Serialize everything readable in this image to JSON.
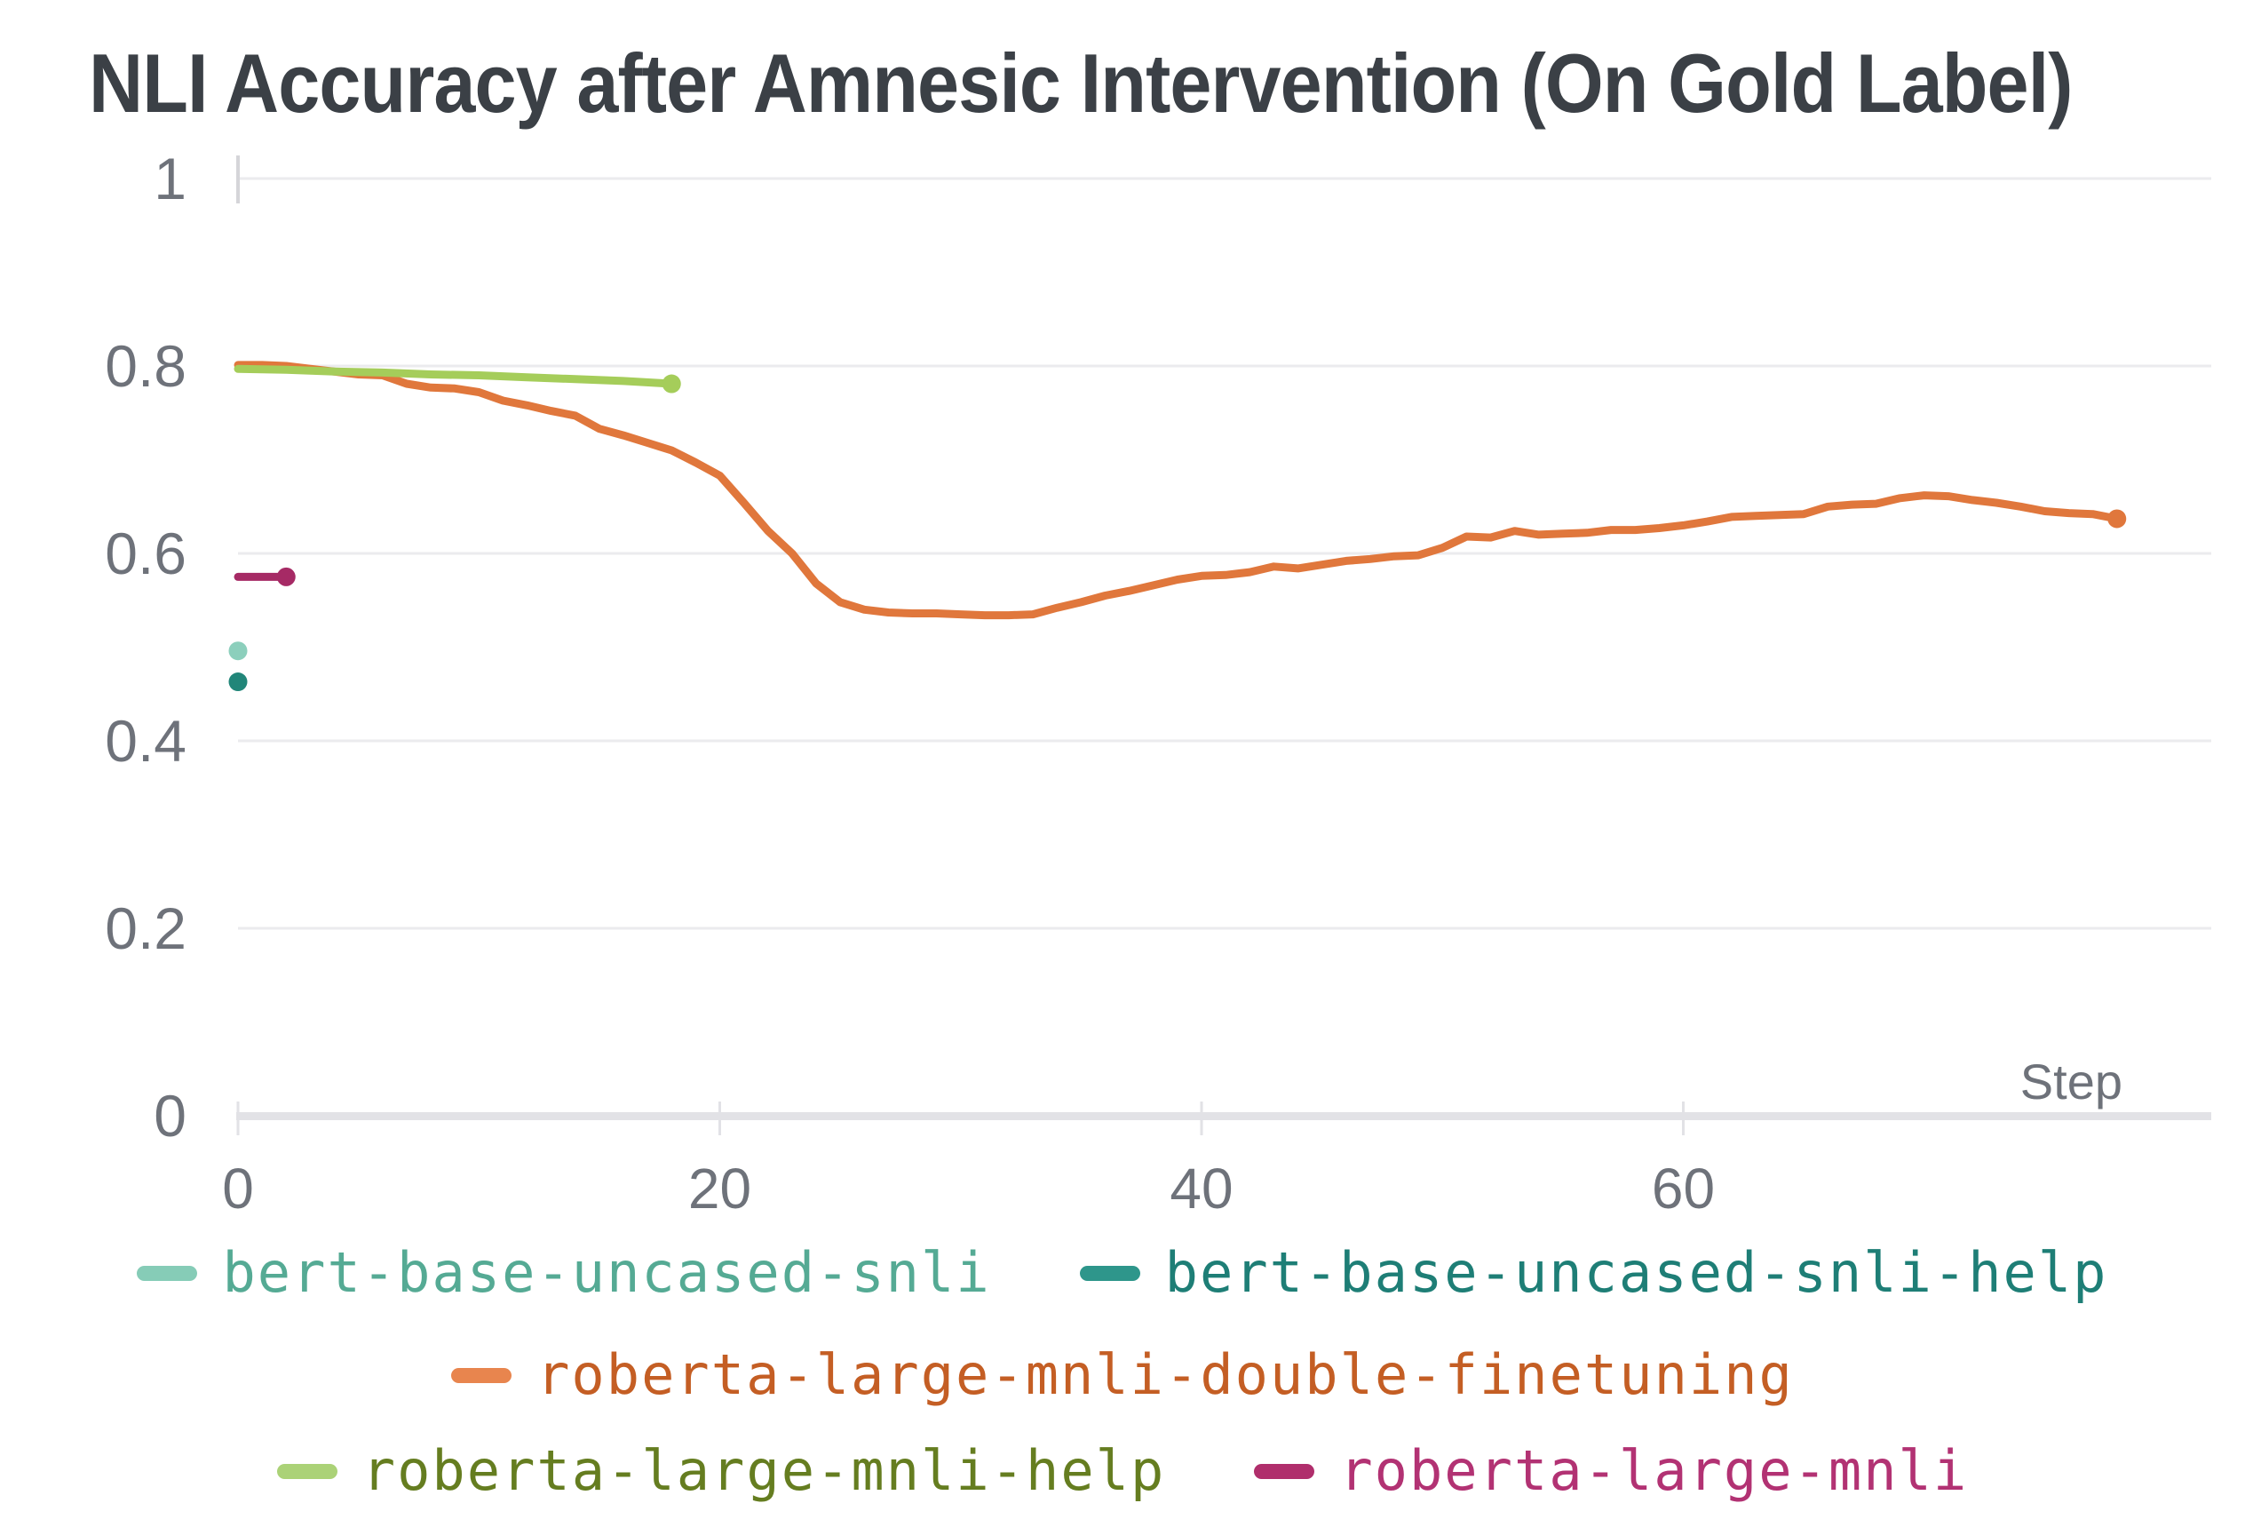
{
  "title": "NLI Accuracy after Amnesic Intervention (On Gold Label)",
  "colors": {
    "title_text": "#3b4046",
    "tick_text": "#6e727a",
    "gridline": "#ebebee",
    "axis_baseline": "#e2e2e6",
    "axis_tick": "#d5d5d9"
  },
  "chart_data": {
    "type": "line",
    "title": "NLI Accuracy after Amnesic Intervention (On Gold Label)",
    "xlabel": "Step",
    "ylabel": "",
    "xlim": [
      0,
      81.9
    ],
    "ylim": [
      0,
      1
    ],
    "grid": "horizontal",
    "legend_position": "bottom",
    "x_ticks": [
      {
        "v": 0,
        "label": "0"
      },
      {
        "v": 20,
        "label": "20"
      },
      {
        "v": 40,
        "label": "40"
      },
      {
        "v": 60,
        "label": "60"
      }
    ],
    "y_ticks": [
      {
        "v": 0,
        "label": "0"
      },
      {
        "v": 0.2,
        "label": "0.2"
      },
      {
        "v": 0.4,
        "label": "0.4"
      },
      {
        "v": 0.6,
        "label": "0.6"
      },
      {
        "v": 0.8,
        "label": "0.8"
      },
      {
        "v": 1,
        "label": "1"
      }
    ],
    "series": [
      {
        "name": "bert-base-uncased-snli",
        "color": "#8ccfbc",
        "swatch_color": "#86ccb7",
        "text_color": "#55aa94",
        "end_marker": true,
        "points": [
          [
            0,
            0.496
          ]
        ]
      },
      {
        "name": "bert-base-uncased-snli-help",
        "color": "#218679",
        "swatch_color": "#2e968b",
        "text_color": "#1e7e76",
        "end_marker": true,
        "points": [
          [
            0,
            0.463
          ]
        ]
      },
      {
        "name": "roberta-large-mnli-double-finetuning",
        "color": "#e0773c",
        "swatch_color": "#e8854e",
        "text_color": "#c45e24",
        "end_marker": true,
        "points": [
          [
            0,
            0.801
          ],
          [
            1,
            0.801
          ],
          [
            2,
            0.8
          ],
          [
            3,
            0.797
          ],
          [
            4,
            0.794
          ],
          [
            5,
            0.791
          ],
          [
            6,
            0.79
          ],
          [
            7,
            0.781
          ],
          [
            8,
            0.777
          ],
          [
            9,
            0.776
          ],
          [
            10,
            0.772
          ],
          [
            11,
            0.763
          ],
          [
            12,
            0.758
          ],
          [
            13,
            0.752
          ],
          [
            14,
            0.747
          ],
          [
            15,
            0.733
          ],
          [
            16,
            0.726
          ],
          [
            17,
            0.718
          ],
          [
            18,
            0.71
          ],
          [
            19,
            0.697
          ],
          [
            20,
            0.683
          ],
          [
            21,
            0.654
          ],
          [
            22,
            0.624
          ],
          [
            23,
            0.6
          ],
          [
            24,
            0.568
          ],
          [
            25,
            0.548
          ],
          [
            26,
            0.54
          ],
          [
            27,
            0.537
          ],
          [
            28,
            0.536
          ],
          [
            29,
            0.536
          ],
          [
            30,
            0.535
          ],
          [
            31,
            0.534
          ],
          [
            32,
            0.534
          ],
          [
            33,
            0.535
          ],
          [
            34,
            0.542
          ],
          [
            35,
            0.548
          ],
          [
            36,
            0.555
          ],
          [
            37,
            0.56
          ],
          [
            38,
            0.566
          ],
          [
            39,
            0.572
          ],
          [
            40,
            0.576
          ],
          [
            41,
            0.577
          ],
          [
            42,
            0.58
          ],
          [
            43,
            0.586
          ],
          [
            44,
            0.584
          ],
          [
            45,
            0.588
          ],
          [
            46,
            0.592
          ],
          [
            47,
            0.594
          ],
          [
            48,
            0.597
          ],
          [
            49,
            0.598
          ],
          [
            50,
            0.606
          ],
          [
            51,
            0.618
          ],
          [
            52,
            0.617
          ],
          [
            53,
            0.624
          ],
          [
            54,
            0.62
          ],
          [
            55,
            0.621
          ],
          [
            56,
            0.622
          ],
          [
            57,
            0.625
          ],
          [
            58,
            0.625
          ],
          [
            59,
            0.627
          ],
          [
            60,
            0.63
          ],
          [
            61,
            0.634
          ],
          [
            62,
            0.639
          ],
          [
            63,
            0.64
          ],
          [
            64,
            0.641
          ],
          [
            65,
            0.642
          ],
          [
            66,
            0.65
          ],
          [
            67,
            0.652
          ],
          [
            68,
            0.653
          ],
          [
            69,
            0.659
          ],
          [
            70,
            0.662
          ],
          [
            71,
            0.661
          ],
          [
            72,
            0.657
          ],
          [
            73,
            0.654
          ],
          [
            74,
            0.65
          ],
          [
            75,
            0.645
          ],
          [
            76,
            0.643
          ],
          [
            77,
            0.642
          ],
          [
            78,
            0.637
          ]
        ]
      },
      {
        "name": "roberta-large-mnli-help",
        "color": "#a5cd5a",
        "swatch_color": "#abd277",
        "text_color": "#657d20",
        "end_marker": true,
        "points": [
          [
            0,
            0.797
          ],
          [
            2,
            0.796
          ],
          [
            4,
            0.794
          ],
          [
            6,
            0.793
          ],
          [
            8,
            0.791
          ],
          [
            10,
            0.79
          ],
          [
            12,
            0.788
          ],
          [
            14,
            0.786
          ],
          [
            16,
            0.784
          ],
          [
            18,
            0.781
          ]
        ]
      },
      {
        "name": "roberta-large-mnli",
        "color": "#a62a65",
        "swatch_color": "#b02e6c",
        "text_color": "#b23273",
        "end_marker": true,
        "points": [
          [
            0,
            0.575
          ],
          [
            2,
            0.575
          ]
        ]
      }
    ],
    "legend_rows": [
      [
        0,
        1
      ],
      [
        2
      ],
      [
        3,
        4
      ]
    ]
  }
}
